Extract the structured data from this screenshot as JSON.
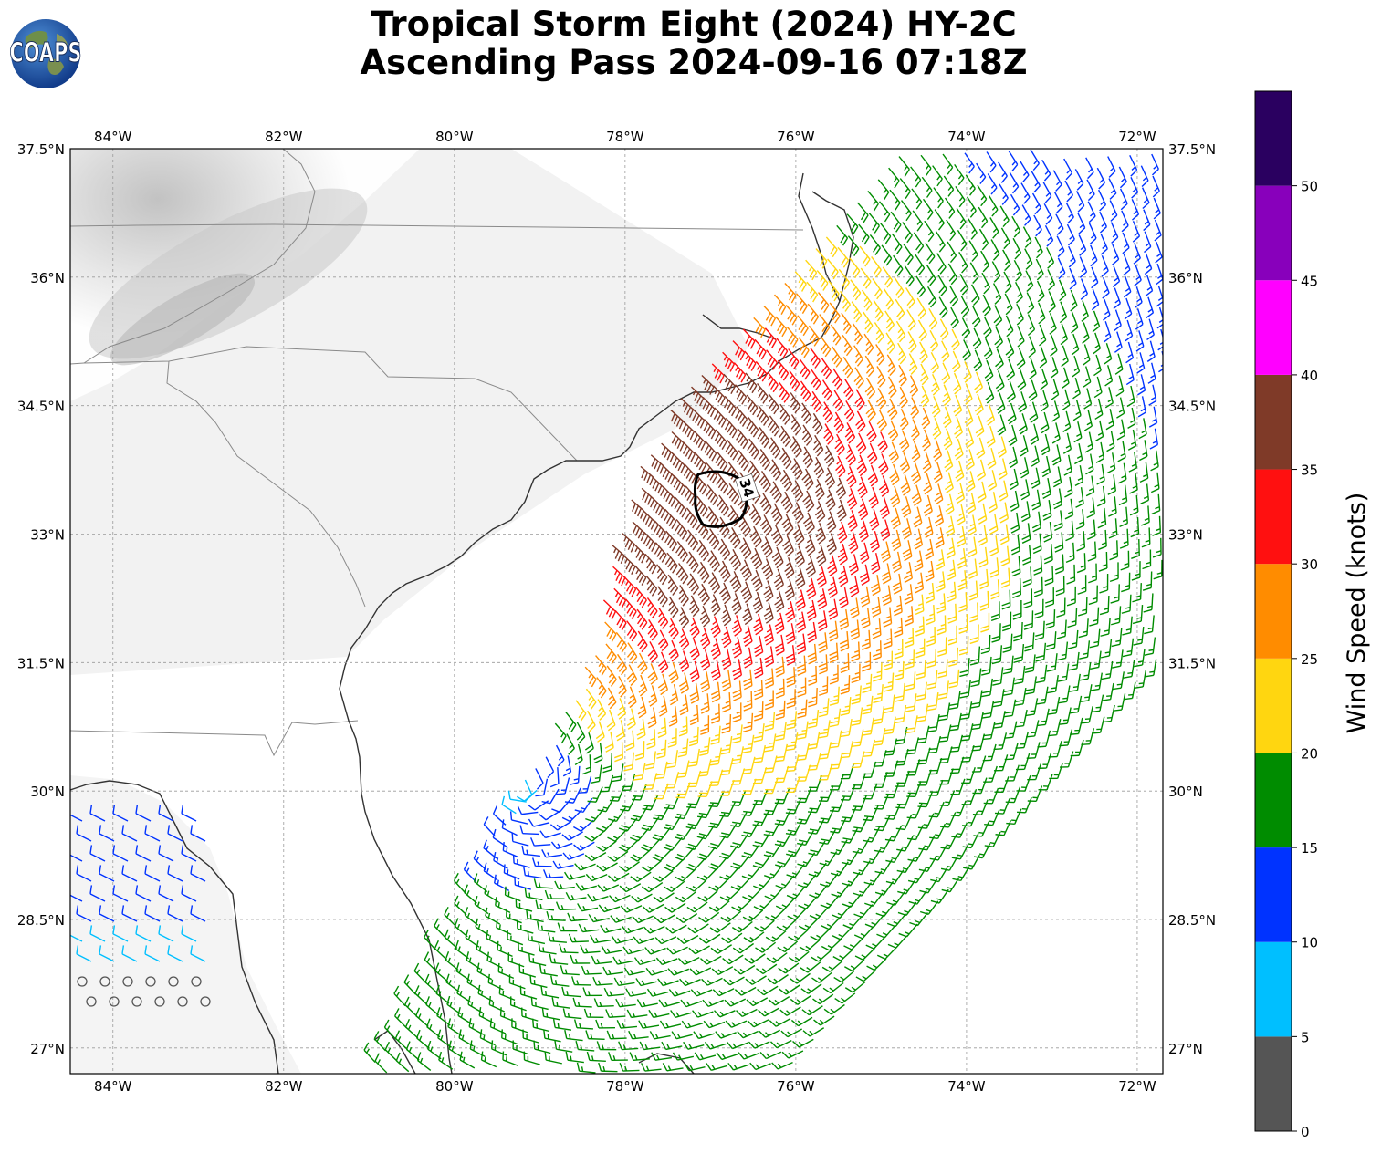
{
  "title": {
    "line1": "Tropical Storm Eight (2024) HY-2C",
    "line2": "Ascending Pass 2024-09-16 07:18Z"
  },
  "logo": {
    "text": "COAPS",
    "icon": "globe-logo-icon"
  },
  "map": {
    "projection": "plate-carree",
    "lon_range": [
      -84.5,
      -71.7
    ],
    "lat_range": [
      26.7,
      37.5
    ],
    "lon_ticks": [
      {
        "value": -84,
        "label": "84°W"
      },
      {
        "value": -82,
        "label": "82°W"
      },
      {
        "value": -80,
        "label": "80°W"
      },
      {
        "value": -78,
        "label": "78°W"
      },
      {
        "value": -76,
        "label": "76°W"
      },
      {
        "value": -74,
        "label": "74°W"
      },
      {
        "value": -72,
        "label": "72°W"
      }
    ],
    "lat_ticks": [
      {
        "value": 37.5,
        "label": "37.5°N"
      },
      {
        "value": 36,
        "label": "36°N"
      },
      {
        "value": 34.5,
        "label": "34.5°N"
      },
      {
        "value": 33,
        "label": "33°N"
      },
      {
        "value": 31.5,
        "label": "31.5°N"
      },
      {
        "value": 30,
        "label": "30°N"
      },
      {
        "value": 28.5,
        "label": "28.5°N"
      },
      {
        "value": 27,
        "label": "27°N"
      }
    ],
    "contour_label": "34",
    "layers": [
      "grayscale infrared cloud imagery",
      "coastlines and state borders",
      "wind barbs",
      "34-knot wind contour"
    ]
  },
  "colorbar": {
    "label": "Wind Speed (knots)",
    "ticks": [
      "0",
      "5",
      "10",
      "15",
      "20",
      "25",
      "30",
      "35",
      "40",
      "45",
      "50"
    ],
    "bins": [
      {
        "min": 0,
        "max": 5,
        "color": "#555555"
      },
      {
        "min": 5,
        "max": 10,
        "color": "#00bfff"
      },
      {
        "min": 10,
        "max": 15,
        "color": "#0033ff"
      },
      {
        "min": 15,
        "max": 20,
        "color": "#008c00"
      },
      {
        "min": 20,
        "max": 25,
        "color": "#ffd610"
      },
      {
        "min": 25,
        "max": 30,
        "color": "#ff8c00"
      },
      {
        "min": 30,
        "max": 35,
        "color": "#ff1010"
      },
      {
        "min": 35,
        "max": 40,
        "color": "#7f3a28"
      },
      {
        "min": 40,
        "max": 45,
        "color": "#ff00ff"
      },
      {
        "min": 45,
        "max": 50,
        "color": "#8800bb"
      },
      {
        "min": 50,
        "max": 55,
        "color": "#2a0060"
      }
    ]
  },
  "wind_field": {
    "center_lon": -79.2,
    "center_lat": 30.1,
    "max_wind_lon": -76.9,
    "max_wind_lat": 33.5,
    "swath": {
      "start_lon": -80.3,
      "start_lat": 26.7,
      "heading_deg": 42,
      "half_width_deg": 3.1
    }
  }
}
